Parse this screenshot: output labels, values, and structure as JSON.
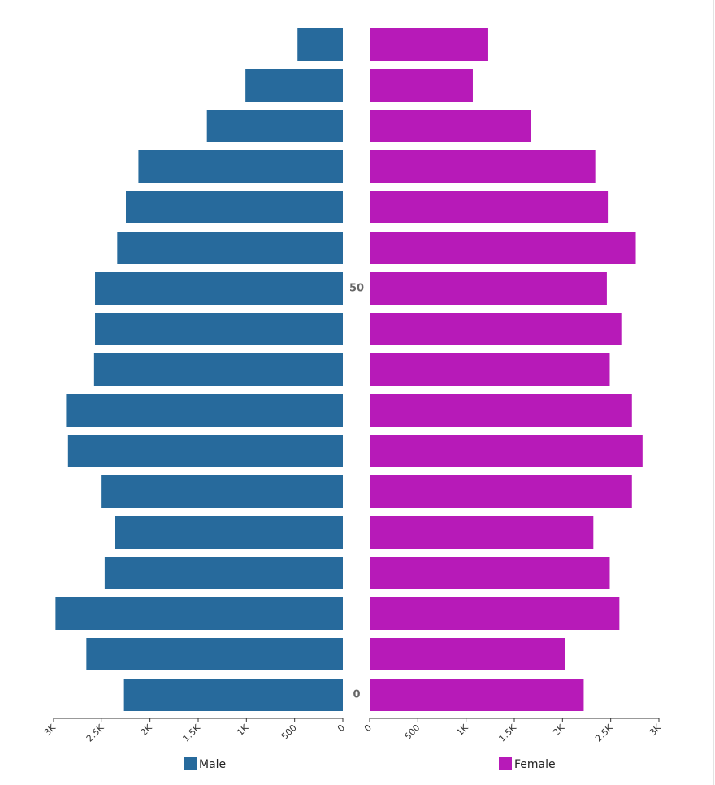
{
  "chart_data": {
    "type": "population-pyramid",
    "categories": [
      "0",
      null,
      null,
      null,
      null,
      null,
      null,
      null,
      null,
      null,
      "50",
      null,
      null,
      null,
      null,
      null,
      null
    ],
    "series": [
      {
        "name": "Male",
        "color": "#276a9c",
        "values": [
          2270,
          2660,
          2980,
          2470,
          2360,
          2510,
          2850,
          2870,
          2580,
          2570,
          2570,
          2340,
          2250,
          2120,
          1410,
          1010,
          470
        ]
      },
      {
        "name": "Female",
        "color": "#b71ab8",
        "values": [
          2220,
          2030,
          2590,
          2490,
          2320,
          2720,
          2830,
          2720,
          2490,
          2610,
          2460,
          2760,
          2470,
          2340,
          1670,
          1070,
          1230
        ]
      }
    ],
    "xlim": [
      0,
      3000
    ],
    "xticks": [
      0,
      500,
      {
        "value": 1000,
        "label": "1K"
      },
      {
        "value": 1500,
        "label": "1.5K"
      },
      {
        "value": 2000,
        "label": "2K"
      },
      {
        "value": 2500,
        "label": "2.5K"
      },
      {
        "value": 3000,
        "label": "3K"
      }
    ]
  }
}
